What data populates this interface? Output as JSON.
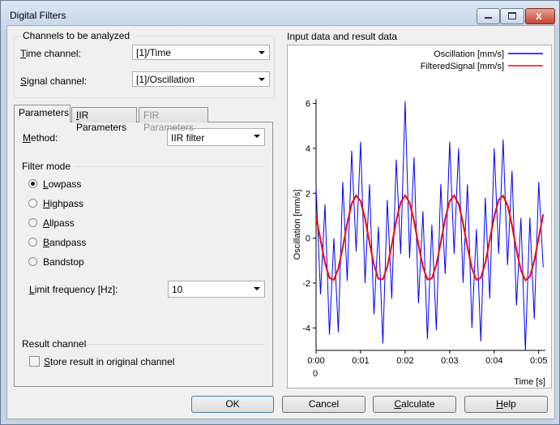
{
  "window": {
    "title": "Digital Filters"
  },
  "channels": {
    "legend": "Channels to be analyzed",
    "time_label": "Time channel:",
    "time_value": "[1]/Time",
    "signal_label": "Signal channel:",
    "signal_value": "[1]/Oscillation"
  },
  "tabs": {
    "labels": [
      "Parameters",
      "IIR Parameters",
      "FIR Parameters"
    ],
    "active": 0,
    "disabled": [
      2
    ]
  },
  "method": {
    "label": "Method:",
    "value": "IIR filter"
  },
  "filter_mode": {
    "legend": "Filter mode",
    "options": [
      "Lowpass",
      "Highpass",
      "Allpass",
      "Bandpass",
      "Bandstop"
    ],
    "selected": 0
  },
  "limit": {
    "label": "Limit frequency [Hz]:",
    "value": 10
  },
  "result": {
    "legend": "Result channel",
    "checkbox": "Store result in original channel",
    "checked": false
  },
  "buttons": [
    "OK",
    "Cancel",
    "Calculate",
    "Help"
  ],
  "chart_data": {
    "type": "line",
    "title": "Input data and result data",
    "ylabel": "Oscillation [mm/s]",
    "xlabel": "Time [s]",
    "x_origin_label": "0",
    "x": [
      0,
      0.001,
      0.002,
      0.003,
      0.004,
      0.005,
      0.006,
      0.007,
      0.008,
      0.009,
      0.01,
      0.011,
      0.012,
      0.013,
      0.014,
      0.015,
      0.016,
      0.017,
      0.018,
      0.019,
      0.02,
      0.021,
      0.022,
      0.023,
      0.024,
      0.025,
      0.026,
      0.027,
      0.028,
      0.029,
      0.03,
      0.031,
      0.032,
      0.033,
      0.034,
      0.035,
      0.036,
      0.037,
      0.038,
      0.039,
      0.04,
      0.041,
      0.042,
      0.043,
      0.044,
      0.045,
      0.046,
      0.047,
      0.048,
      0.049,
      0.05,
      0.051
    ],
    "xlim": [
      0,
      0.0515
    ],
    "xticks": [
      {
        "value": 0,
        "label": "0:00"
      },
      {
        "value": 0.01,
        "label": "0:01"
      },
      {
        "value": 0.02,
        "label": "0:02"
      },
      {
        "value": 0.03,
        "label": "0:03"
      },
      {
        "value": 0.04,
        "label": "0:04"
      },
      {
        "value": 0.05,
        "label": "0:05"
      }
    ],
    "ylim": [
      -5,
      6.2
    ],
    "yticks": [
      -4,
      -2,
      0,
      2,
      4,
      6
    ],
    "legend": "top-right",
    "series": [
      {
        "name": "Oscillation [mm/s]",
        "color": "#0000ff",
        "values": [
          2.3,
          -2.5,
          1.5,
          -4.3,
          0.0,
          -4.2,
          2.5,
          -1.9,
          3.9,
          -0.6,
          4.3,
          -2.0,
          2.4,
          -3.4,
          0.5,
          -4.7,
          1.7,
          -2.7,
          3.5,
          -0.7,
          6.1,
          -0.9,
          3.6,
          -2.9,
          1.2,
          -4.5,
          0.6,
          -4.1,
          2.4,
          -1.6,
          4.3,
          -0.7,
          4.0,
          -2.0,
          2.4,
          -4.0,
          0.4,
          -4.6,
          1.8,
          -2.7,
          4.0,
          -0.7,
          4.4,
          -1.2,
          3.0,
          -3.0,
          0.9,
          -5.0,
          0.9,
          -3.6,
          2.5,
          -1.3
        ]
      },
      {
        "name": "FilteredSignal [mm/s]",
        "color": "#ff0000",
        "values": [
          0.97,
          -0.08,
          -1.1,
          -1.77,
          -1.86,
          -1.35,
          -0.41,
          0.67,
          1.53,
          1.9,
          1.65,
          0.87,
          -0.19,
          -1.19,
          -1.81,
          -1.84,
          -1.27,
          -0.3,
          0.77,
          1.59,
          1.9,
          1.59,
          0.77,
          -0.3,
          -1.28,
          -1.84,
          -1.8,
          -1.19,
          -0.19,
          0.87,
          1.65,
          1.9,
          1.53,
          0.67,
          -0.41,
          -1.35,
          -1.86,
          -1.77,
          -1.1,
          -0.08,
          0.97,
          1.7,
          1.89,
          1.46,
          0.56,
          -0.52,
          -1.43,
          -1.88,
          -1.72,
          -1.01,
          0.03,
          1.06
        ]
      }
    ]
  }
}
